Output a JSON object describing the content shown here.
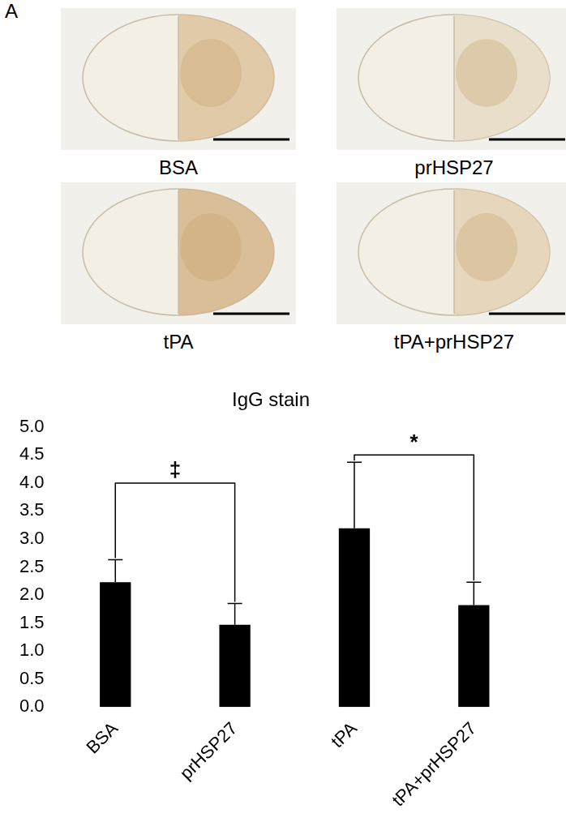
{
  "panel": "A",
  "images": [
    "BSA",
    "prHSP27",
    "tPA",
    "tPA+prHSP27"
  ],
  "chart_data": {
    "type": "bar",
    "title": "IgG stain",
    "categories": [
      "BSA",
      "prHSP27",
      "tPA",
      "tPA+prHSP27"
    ],
    "values": [
      2.23,
      1.47,
      3.19,
      1.82
    ],
    "errors": [
      0.4,
      0.38,
      1.18,
      0.41
    ],
    "color": "#000000",
    "ylim": [
      0,
      5
    ],
    "yticks": [
      {
        "value": 0,
        "label": "0.0"
      },
      0.5,
      {
        "value": 1,
        "label": "1.0"
      },
      1.5,
      {
        "value": 2,
        "label": "2.0"
      },
      2.5,
      {
        "value": 3,
        "label": "3.0"
      },
      3.5,
      {
        "value": 4,
        "label": "4.0"
      },
      4.5,
      {
        "value": 5,
        "label": "5.0"
      }
    ],
    "grid": false,
    "annotations": [
      {
        "text": "‡",
        "from": 0,
        "to": 1,
        "y": 4.0
      },
      {
        "text": "*",
        "from": 2,
        "to": 3,
        "y": 4.5
      }
    ]
  }
}
